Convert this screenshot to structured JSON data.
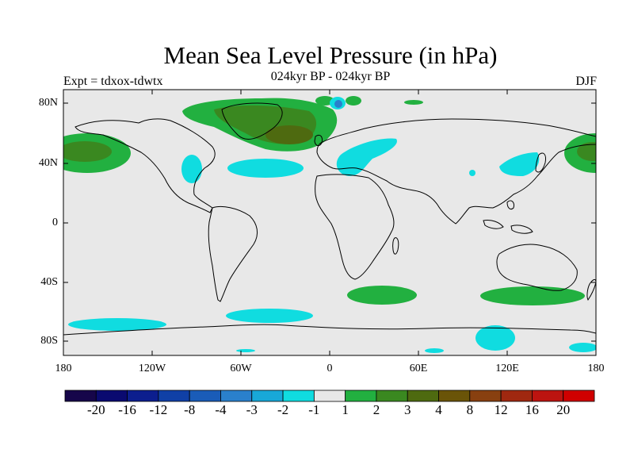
{
  "title": "Mean Sea Level Pressure (in hPa)",
  "subtitle": "024kyr BP - 024kyr BP",
  "experiment": "Expt = tdxox-tdwtx",
  "season": "DJF",
  "axes": {
    "lat_ticks": [
      "80N",
      "40N",
      "0",
      "40S",
      "80S"
    ],
    "lon_ticks": [
      "180",
      "120W",
      "60W",
      "0",
      "60E",
      "120E",
      "180"
    ]
  },
  "colorbar": {
    "labels": [
      "-20",
      "-16",
      "-12",
      "-8",
      "-4",
      "-3",
      "-2",
      "-1",
      "1",
      "2",
      "3",
      "4",
      "8",
      "12",
      "16",
      "20"
    ],
    "colors": [
      "#16064a",
      "#0a0a70",
      "#0c1e8e",
      "#1040a6",
      "#1a5cb8",
      "#2a80cc",
      "#18a8d8",
      "#10dce0",
      "#e8e8e8",
      "#22b040",
      "#3a8820",
      "#4e6a10",
      "#6a5408",
      "#884010",
      "#a02810",
      "#bc1410",
      "#d00000"
    ]
  },
  "map": {
    "background_color": "#e8e8e8",
    "lat_range": [
      -90,
      90
    ],
    "lon_range": [
      -180,
      180
    ]
  }
}
